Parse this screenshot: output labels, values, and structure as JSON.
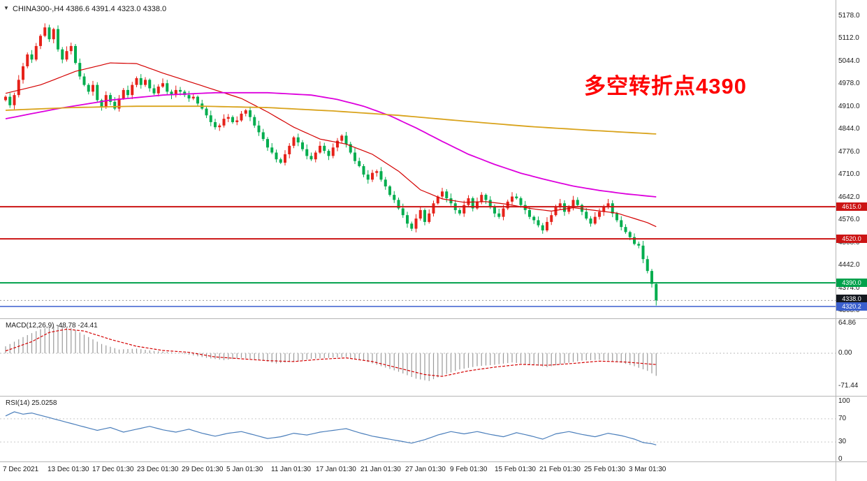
{
  "window": {
    "dropdown_icon": "▼",
    "title_symbol": "CHINA300-,H4",
    "title_quote": "4386.6 4391.4 4323.0 4338.0"
  },
  "annotation": {
    "text": "多空转折点4390",
    "color": "#fe0000"
  },
  "palette": {
    "candle_up": "#e6221a",
    "candle_down": "#00ad4e",
    "axis_line": "#b5b5b5",
    "bid_line": "#9a9a9a"
  },
  "chart_data": {
    "type": "candlestick",
    "symbol": "CHINA300-",
    "timeframe": "H4",
    "quote": {
      "open": 4386.6,
      "high": 4391.4,
      "low": 4323.0,
      "close": 4338.0
    },
    "price_axis": {
      "range": [
        4285,
        5226
      ],
      "ticks": [
        5178.0,
        5112.0,
        5044.0,
        4978.0,
        4910.0,
        4844.0,
        4776.0,
        4710.0,
        4642.0,
        4576.0,
        4508.0,
        4442.0,
        4374.0,
        4308.0
      ]
    },
    "h_lines": [
      {
        "price": 4615.0,
        "label": "4615.0",
        "color": "#cc1414",
        "width": 2
      },
      {
        "price": 4520.0,
        "label": "4520.0",
        "color": "#cc1414",
        "width": 2
      },
      {
        "price": 4390.0,
        "label": "4390.0",
        "color": "#00a14b",
        "width": 2
      },
      {
        "price": 4320.2,
        "label": "4320.2",
        "color": "#3a5fcd",
        "width": 1.5
      }
    ],
    "last_price_tag": {
      "price": 4338.0,
      "label": "4338.0",
      "color": "#14181f"
    },
    "closes": [
      4940,
      4915,
      4945,
      4990,
      5030,
      5065,
      5050,
      5090,
      5120,
      5145,
      5110,
      5140,
      5080,
      5050,
      5075,
      5090,
      5040,
      5000,
      4975,
      4955,
      4975,
      4930,
      4910,
      4945,
      4925,
      4905,
      4935,
      4960,
      4945,
      4975,
      4995,
      4975,
      4990,
      4965,
      4950,
      4970,
      4980,
      4955,
      4945,
      4960,
      4955,
      4945,
      4935,
      4940,
      4920,
      4905,
      4885,
      4865,
      4850,
      4855,
      4875,
      4880,
      4865,
      4870,
      4890,
      4900,
      4880,
      4855,
      4835,
      4815,
      4790,
      4775,
      4755,
      4745,
      4770,
      4795,
      4820,
      4805,
      4785,
      4765,
      4755,
      4775,
      4795,
      4780,
      4765,
      4790,
      4810,
      4825,
      4800,
      4775,
      4750,
      4735,
      4710,
      4695,
      4715,
      4720,
      4695,
      4675,
      4650,
      4635,
      4610,
      4590,
      4565,
      4550,
      4580,
      4605,
      4570,
      4595,
      4625,
      4645,
      4660,
      4640,
      4625,
      4605,
      4595,
      4620,
      4640,
      4610,
      4630,
      4650,
      4635,
      4615,
      4595,
      4585,
      4610,
      4630,
      4645,
      4640,
      4620,
      4605,
      4585,
      4575,
      4560,
      4545,
      4570,
      4590,
      4615,
      4625,
      4600,
      4615,
      4635,
      4620,
      4600,
      4580,
      4565,
      4585,
      4600,
      4615,
      4625,
      4595,
      4575,
      4555,
      4540,
      4525,
      4505,
      4500,
      4460,
      4425,
      4387,
      4338
    ],
    "ma_lines": [
      {
        "name": "ma-medium-red",
        "color": "#d40000",
        "width": 1.2,
        "points": [
          [
            0,
            4950
          ],
          [
            8,
            4975
          ],
          [
            16,
            5015
          ],
          [
            24,
            5040
          ],
          [
            30,
            5038
          ],
          [
            36,
            5010
          ],
          [
            42,
            4985
          ],
          [
            48,
            4960
          ],
          [
            54,
            4935
          ],
          [
            60,
            4895
          ],
          [
            66,
            4850
          ],
          [
            72,
            4815
          ],
          [
            78,
            4800
          ],
          [
            84,
            4770
          ],
          [
            90,
            4720
          ],
          [
            95,
            4665
          ],
          [
            100,
            4638
          ],
          [
            105,
            4628
          ],
          [
            110,
            4630
          ],
          [
            115,
            4622
          ],
          [
            120,
            4610
          ],
          [
            125,
            4602
          ],
          [
            130,
            4612
          ],
          [
            135,
            4604
          ],
          [
            140,
            4596
          ],
          [
            144,
            4580
          ],
          [
            147,
            4568
          ],
          [
            149,
            4556
          ]
        ]
      },
      {
        "name": "ma-slow-magenta",
        "color": "#dd00dd",
        "width": 1.8,
        "points": [
          [
            0,
            4875
          ],
          [
            12,
            4905
          ],
          [
            24,
            4930
          ],
          [
            36,
            4945
          ],
          [
            48,
            4952
          ],
          [
            60,
            4952
          ],
          [
            70,
            4945
          ],
          [
            76,
            4932
          ],
          [
            82,
            4912
          ],
          [
            88,
            4884
          ],
          [
            94,
            4848
          ],
          [
            100,
            4808
          ],
          [
            106,
            4770
          ],
          [
            112,
            4740
          ],
          [
            118,
            4714
          ],
          [
            124,
            4694
          ],
          [
            130,
            4676
          ],
          [
            136,
            4663
          ],
          [
            142,
            4653
          ],
          [
            149,
            4644
          ]
        ]
      },
      {
        "name": "ma-slowest-orange",
        "color": "#d9a31c",
        "width": 1.8,
        "points": [
          [
            0,
            4900
          ],
          [
            15,
            4908
          ],
          [
            30,
            4912
          ],
          [
            45,
            4912
          ],
          [
            60,
            4908
          ],
          [
            75,
            4898
          ],
          [
            90,
            4885
          ],
          [
            105,
            4868
          ],
          [
            120,
            4852
          ],
          [
            135,
            4840
          ],
          [
            149,
            4830
          ]
        ]
      }
    ],
    "macd": {
      "label": "MACD(12,26,9) -48.78 -24.41",
      "main_value": -48.78,
      "signal_value": -24.41,
      "axis_ticks": [
        64.86,
        0.0,
        -71.44
      ],
      "histogram_color": "#9a9a9a",
      "signal_color": "#d40000",
      "histogram": [
        [
          0,
          15
        ],
        [
          4,
          35
        ],
        [
          8,
          52
        ],
        [
          12,
          60
        ],
        [
          15,
          55
        ],
        [
          18,
          40
        ],
        [
          22,
          20
        ],
        [
          26,
          8
        ],
        [
          30,
          10
        ],
        [
          34,
          5
        ],
        [
          38,
          2
        ],
        [
          42,
          -3
        ],
        [
          46,
          -10
        ],
        [
          50,
          -15
        ],
        [
          54,
          -10
        ],
        [
          58,
          -14
        ],
        [
          62,
          -22
        ],
        [
          66,
          -18
        ],
        [
          70,
          -12
        ],
        [
          74,
          -10
        ],
        [
          78,
          -8
        ],
        [
          82,
          -16
        ],
        [
          86,
          -28
        ],
        [
          90,
          -40
        ],
        [
          94,
          -55
        ],
        [
          97,
          -60
        ],
        [
          100,
          -48
        ],
        [
          104,
          -35
        ],
        [
          108,
          -28
        ],
        [
          112,
          -25
        ],
        [
          116,
          -20
        ],
        [
          120,
          -24
        ],
        [
          124,
          -30
        ],
        [
          128,
          -22
        ],
        [
          132,
          -16
        ],
        [
          136,
          -14
        ],
        [
          140,
          -18
        ],
        [
          144,
          -28
        ],
        [
          147,
          -38
        ],
        [
          149,
          -48.78
        ]
      ],
      "signal": [
        [
          0,
          5
        ],
        [
          6,
          25
        ],
        [
          10,
          45
        ],
        [
          14,
          52
        ],
        [
          18,
          48
        ],
        [
          24,
          30
        ],
        [
          30,
          15
        ],
        [
          36,
          6
        ],
        [
          42,
          2
        ],
        [
          48,
          -8
        ],
        [
          54,
          -12
        ],
        [
          60,
          -16
        ],
        [
          66,
          -18
        ],
        [
          72,
          -13
        ],
        [
          78,
          -10
        ],
        [
          84,
          -18
        ],
        [
          90,
          -32
        ],
        [
          96,
          -46
        ],
        [
          100,
          -50
        ],
        [
          106,
          -38
        ],
        [
          112,
          -30
        ],
        [
          118,
          -24
        ],
        [
          124,
          -26
        ],
        [
          130,
          -22
        ],
        [
          136,
          -17
        ],
        [
          142,
          -19
        ],
        [
          149,
          -24.41
        ]
      ]
    },
    "rsi": {
      "label": "RSI(14) 25.0258",
      "value": 25.0258,
      "axis_ticks": [
        100,
        70,
        30,
        0
      ],
      "levels": [
        70,
        30
      ],
      "color": "#4a7ebb",
      "points": [
        [
          0,
          75
        ],
        [
          2,
          82
        ],
        [
          4,
          78
        ],
        [
          6,
          80
        ],
        [
          9,
          74
        ],
        [
          12,
          68
        ],
        [
          15,
          62
        ],
        [
          18,
          56
        ],
        [
          21,
          50
        ],
        [
          24,
          55
        ],
        [
          27,
          47
        ],
        [
          30,
          52
        ],
        [
          33,
          57
        ],
        [
          36,
          51
        ],
        [
          39,
          47
        ],
        [
          42,
          52
        ],
        [
          45,
          45
        ],
        [
          48,
          40
        ],
        [
          51,
          45
        ],
        [
          54,
          48
        ],
        [
          57,
          42
        ],
        [
          60,
          36
        ],
        [
          63,
          39
        ],
        [
          66,
          45
        ],
        [
          69,
          42
        ],
        [
          72,
          47
        ],
        [
          75,
          50
        ],
        [
          78,
          53
        ],
        [
          81,
          46
        ],
        [
          84,
          40
        ],
        [
          87,
          36
        ],
        [
          90,
          32
        ],
        [
          93,
          28
        ],
        [
          96,
          34
        ],
        [
          99,
          42
        ],
        [
          102,
          48
        ],
        [
          105,
          44
        ],
        [
          108,
          48
        ],
        [
          111,
          43
        ],
        [
          114,
          39
        ],
        [
          117,
          46
        ],
        [
          120,
          41
        ],
        [
          123,
          35
        ],
        [
          126,
          44
        ],
        [
          129,
          48
        ],
        [
          132,
          43
        ],
        [
          135,
          39
        ],
        [
          138,
          45
        ],
        [
          141,
          41
        ],
        [
          144,
          35
        ],
        [
          146,
          29
        ],
        [
          148,
          27
        ],
        [
          149,
          25
        ]
      ]
    },
    "time_axis": {
      "labels": [
        "7 Dec 2021",
        "13 Dec 01:30",
        "17 Dec 01:30",
        "23 Dec 01:30",
        "29 Dec 01:30",
        "5 Jan 01:30",
        "11 Jan 01:30",
        "17 Jan 01:30",
        "21 Jan 01:30",
        "27 Jan 01:30",
        "9 Feb 01:30",
        "15 Feb 01:30",
        "21 Feb 01:30",
        "25 Feb 01:30",
        "3 Mar 01:30"
      ]
    }
  }
}
